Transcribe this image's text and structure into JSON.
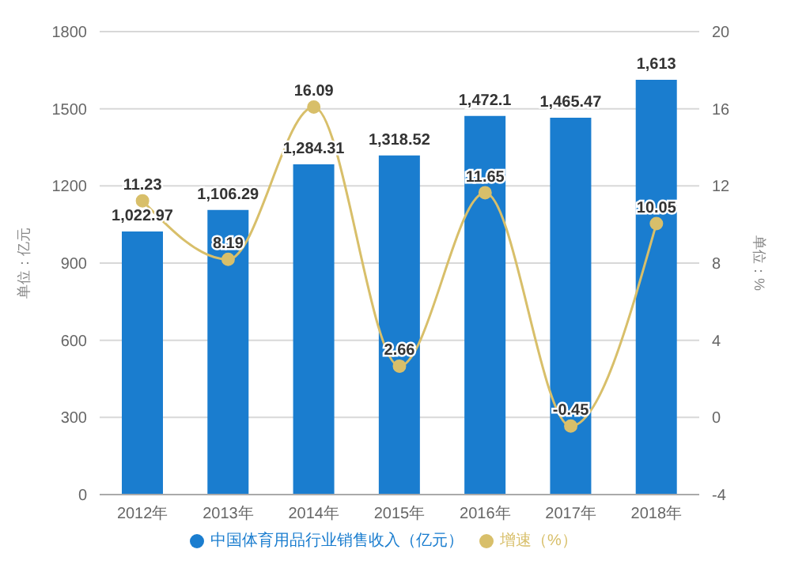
{
  "chart_data": {
    "type": "bar",
    "categories": [
      "2012年",
      "2013年",
      "2014年",
      "2015年",
      "2016年",
      "2017年",
      "2018年"
    ],
    "ylabel": "单位：亿元",
    "y2label": "单位：%",
    "ylim": [
      0,
      1800
    ],
    "yticks": [
      0,
      300,
      600,
      900,
      1200,
      1500,
      1800
    ],
    "y2lim": [
      -4,
      20
    ],
    "y2ticks": [
      -4,
      0,
      4,
      8,
      12,
      16,
      20
    ],
    "grid": "y",
    "legend": "bottom",
    "series": [
      {
        "name": "中国体育用品行业销售收入（亿元）",
        "color": "#1a7dcf",
        "values": [
          1022.97,
          1106.29,
          1284.31,
          1318.52,
          1472.1,
          1465.47,
          1613
        ],
        "value_labels": [
          "1,022.97",
          "1,106.29",
          "1,284.31",
          "1,318.52",
          "1,472.1",
          "1,465.47",
          "1,613"
        ]
      },
      {
        "name": "增速（%）",
        "type": "line",
        "axis": "y2",
        "color": "#d8bf6a",
        "marker": "circle",
        "values": [
          11.23,
          8.19,
          16.09,
          2.66,
          11.65,
          -0.45,
          10.05
        ],
        "value_labels": [
          "11.23",
          "8.19",
          "16.09",
          "2.66",
          "11.65",
          "-0.45",
          "10.05"
        ]
      }
    ]
  }
}
